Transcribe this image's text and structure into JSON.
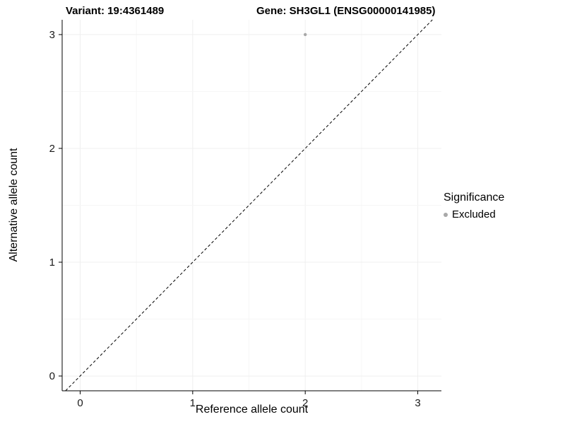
{
  "titles": {
    "variant": "Variant: 19:4361489",
    "gene": "Gene: SH3GL1 (ENSG00000141985)"
  },
  "axes": {
    "x_title": "Reference allele count",
    "y_title": "Alternative allele count"
  },
  "legend": {
    "title": "Significance",
    "items": [
      {
        "label": "Excluded",
        "color": "#a8a8a8"
      }
    ]
  },
  "colors": {
    "point": "#a8a8a8",
    "axis_line": "#000000",
    "reference_line": "#000000",
    "grid_major": "#efefef",
    "grid_minor": "#f6f6f6"
  },
  "chart_data": {
    "type": "scatter",
    "title": "Variant: 19:4361489   Gene: SH3GL1 (ENSG00000141985)",
    "xlabel": "Reference allele count",
    "ylabel": "Alternative allele count",
    "xlim": [
      -0.16,
      3.21
    ],
    "ylim": [
      -0.13,
      3.13
    ],
    "xticks": [
      0,
      1,
      2,
      3
    ],
    "yticks": [
      0,
      1,
      2,
      3
    ],
    "grid": true,
    "legend_position": "right",
    "legend_title": "Significance",
    "series": [
      {
        "name": "Excluded",
        "color": "#a8a8a8",
        "points": [
          {
            "x": 2,
            "y": 3
          }
        ]
      }
    ],
    "reference_line": {
      "type": "identity",
      "slope": 1,
      "intercept": 0,
      "style": "dashed",
      "color": "#000000"
    }
  }
}
